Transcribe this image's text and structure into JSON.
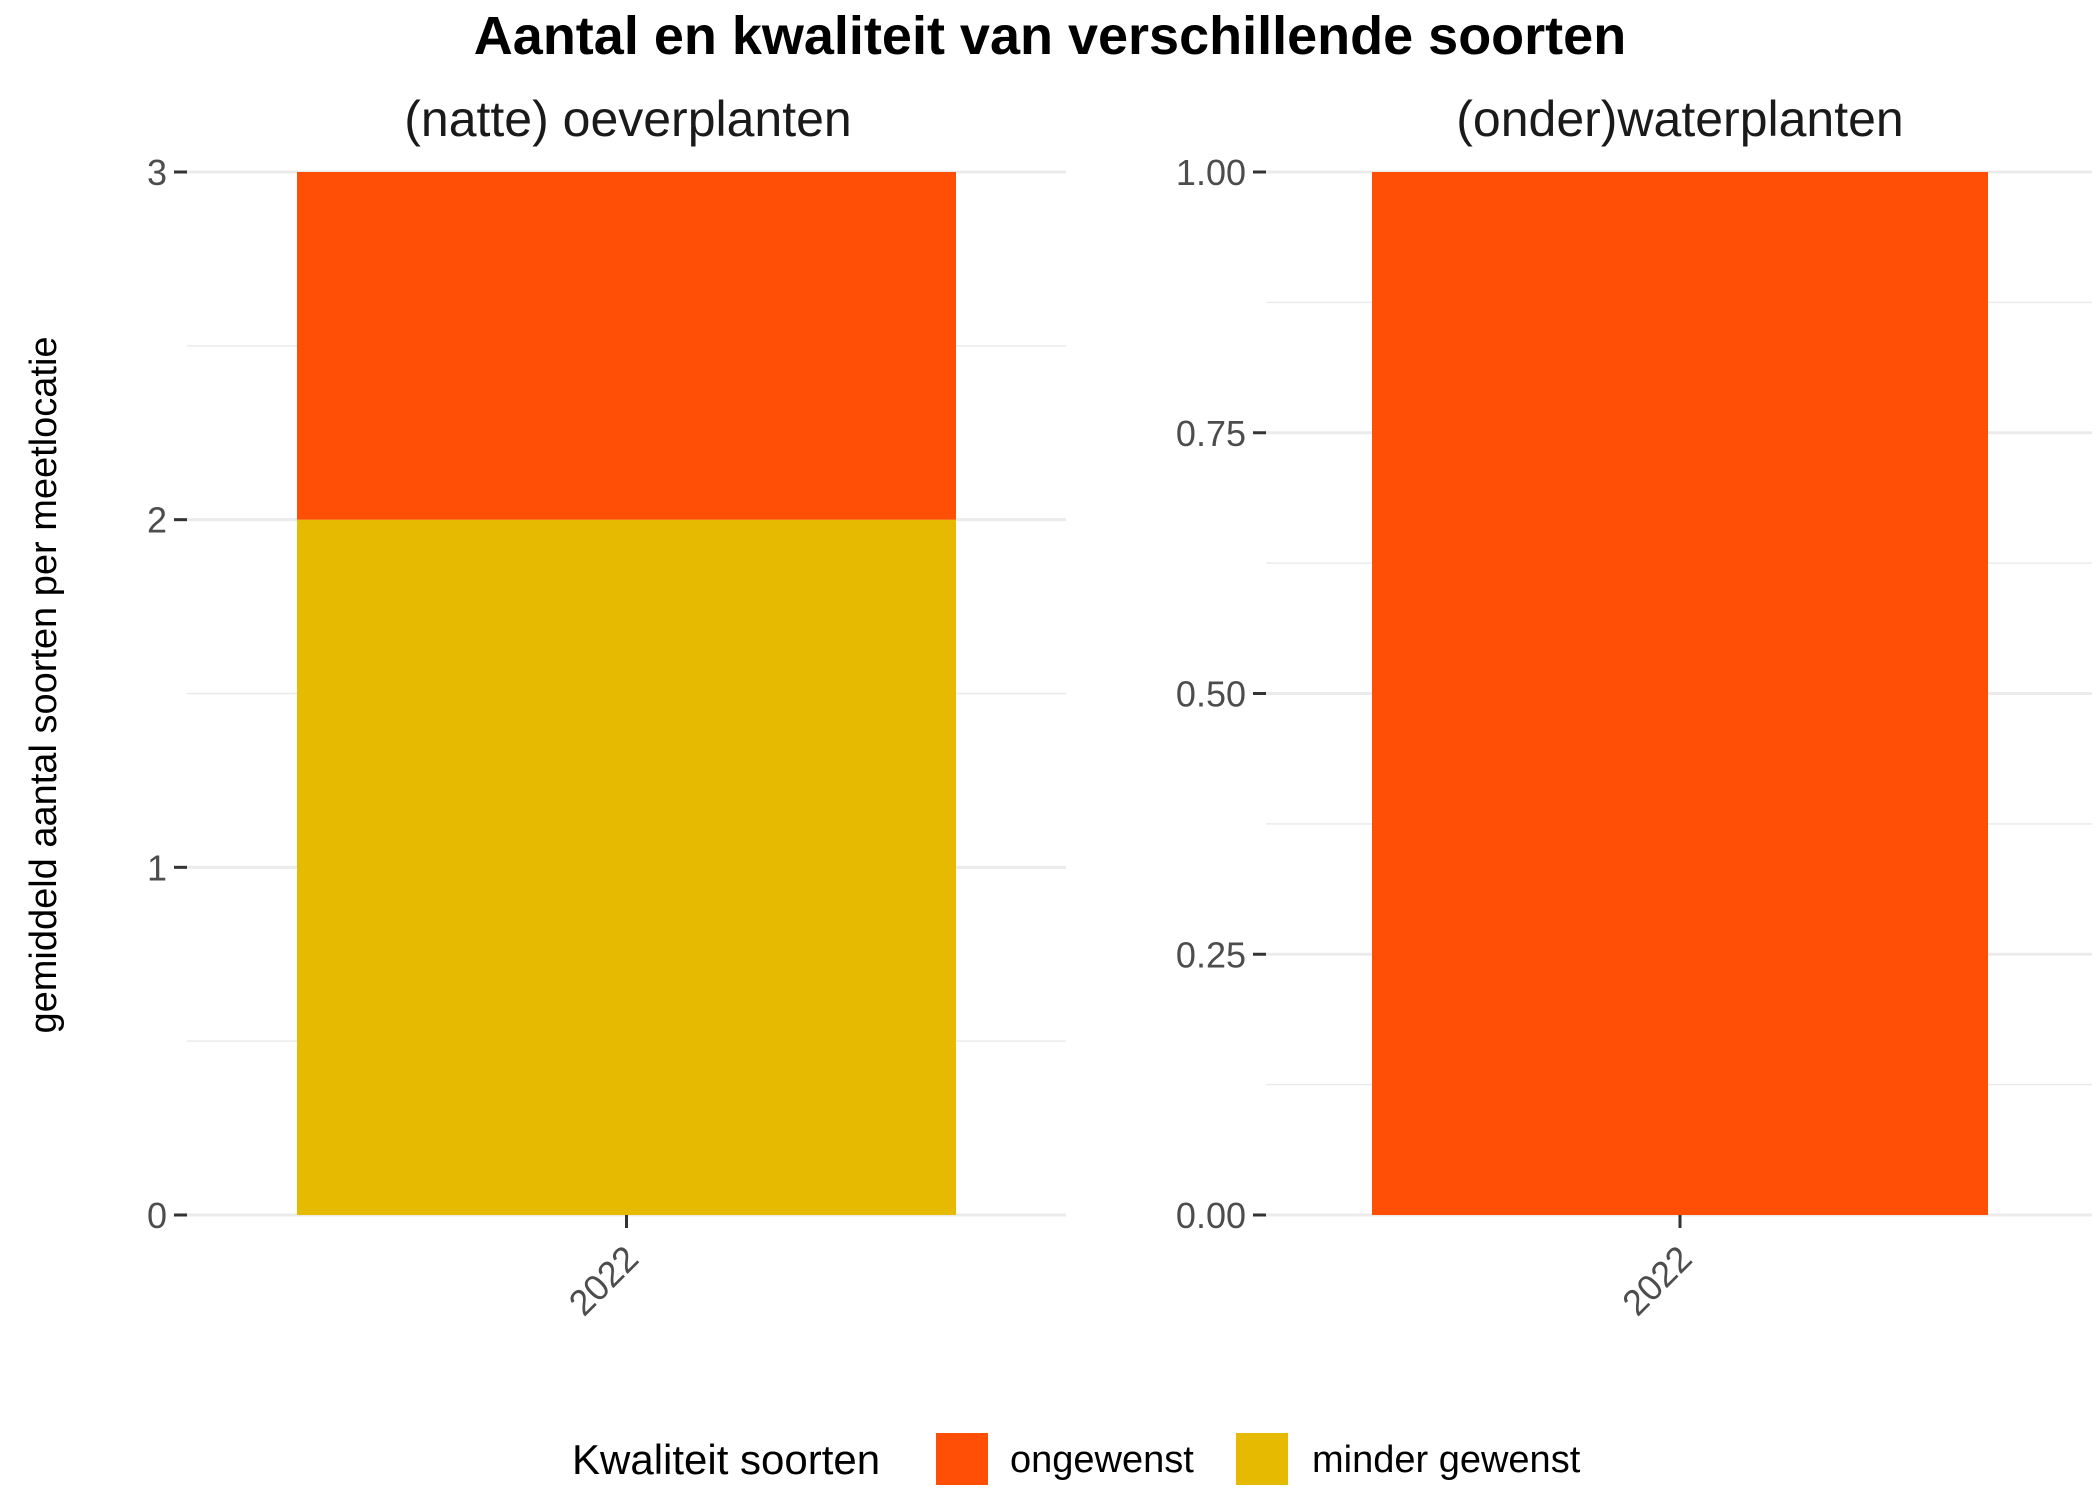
{
  "chart_data": {
    "type": "bar",
    "stacked": true,
    "title": "Aantal en kwaliteit van verschillende soorten",
    "ylabel": "gemiddeld aantal soorten per meetlocatie",
    "xlabel": "",
    "grid": true,
    "legend": {
      "title": "Kwaliteit soorten",
      "placement": "bottom",
      "entries": [
        {
          "name": "ongewenst",
          "color": "#FF4F07"
        },
        {
          "name": "minder gewenst",
          "color": "#E6BA00"
        }
      ]
    },
    "panels": [
      {
        "title": "(natte) oeverplanten",
        "categories": [
          "2022"
        ],
        "ylim": [
          0,
          3
        ],
        "yticks": [
          "0",
          "1",
          "2",
          "3"
        ],
        "series": [
          {
            "name": "minder gewenst",
            "color": "#E6BA00",
            "values": [
              2
            ]
          },
          {
            "name": "ongewenst",
            "color": "#FF4F07",
            "values": [
              1
            ]
          }
        ]
      },
      {
        "title": "(onder)waterplanten",
        "categories": [
          "2022"
        ],
        "ylim": [
          0,
          1
        ],
        "yticks": [
          "0.00",
          "0.25",
          "0.50",
          "0.75",
          "1.00"
        ],
        "series": [
          {
            "name": "ongewenst",
            "color": "#FF4F07",
            "values": [
              1
            ]
          }
        ]
      }
    ]
  }
}
